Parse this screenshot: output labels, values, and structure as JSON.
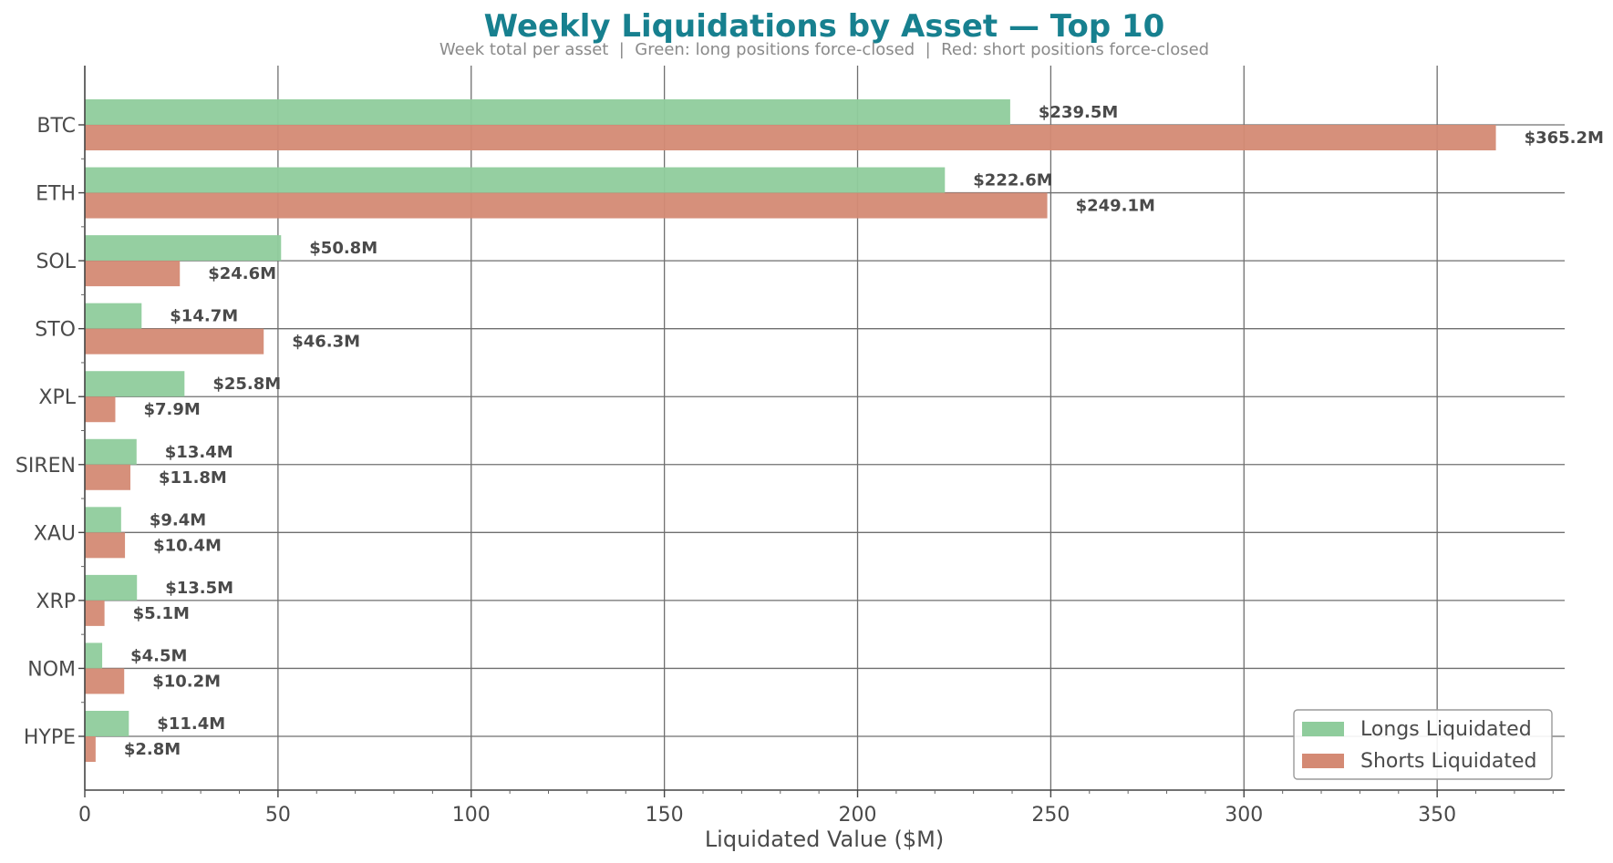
{
  "chart_data": {
    "type": "bar",
    "orientation": "horizontal",
    "title": "Weekly Liquidations by Asset — Top 10",
    "subtitle": "Week total per asset  |  Green: long positions force-closed  |  Red: short positions force-closed",
    "xlabel": "Liquidated Value ($M)",
    "ylabel": "",
    "xlim": [
      0,
      383
    ],
    "xticks": [
      0,
      50,
      100,
      150,
      200,
      250,
      300,
      350
    ],
    "grid": true,
    "legend_position": "bottom-right",
    "categories": [
      "BTC",
      "ETH",
      "SOL",
      "STO",
      "XPL",
      "SIREN",
      "XAU",
      "XRP",
      "NOM",
      "HYPE"
    ],
    "series": [
      {
        "name": "Longs Liquidated",
        "color": "#8fcc9c",
        "values": [
          239.5,
          222.6,
          50.8,
          14.7,
          25.8,
          13.4,
          9.4,
          13.5,
          4.5,
          11.4
        ],
        "labels": [
          "$239.5M",
          "$222.6M",
          "$50.8M",
          "$14.7M",
          "$25.8M",
          "$13.4M",
          "$9.4M",
          "$13.5M",
          "$4.5M",
          "$11.4M"
        ]
      },
      {
        "name": "Shorts Liquidated",
        "color": "#d48a74",
        "values": [
          365.2,
          249.1,
          24.6,
          46.3,
          7.9,
          11.8,
          10.4,
          5.1,
          10.2,
          2.8
        ],
        "labels": [
          "$365.2M",
          "$249.1M",
          "$24.6M",
          "$46.3M",
          "$7.9M",
          "$11.8M",
          "$10.4M",
          "$5.1M",
          "$10.2M",
          "$2.8M"
        ]
      }
    ]
  }
}
